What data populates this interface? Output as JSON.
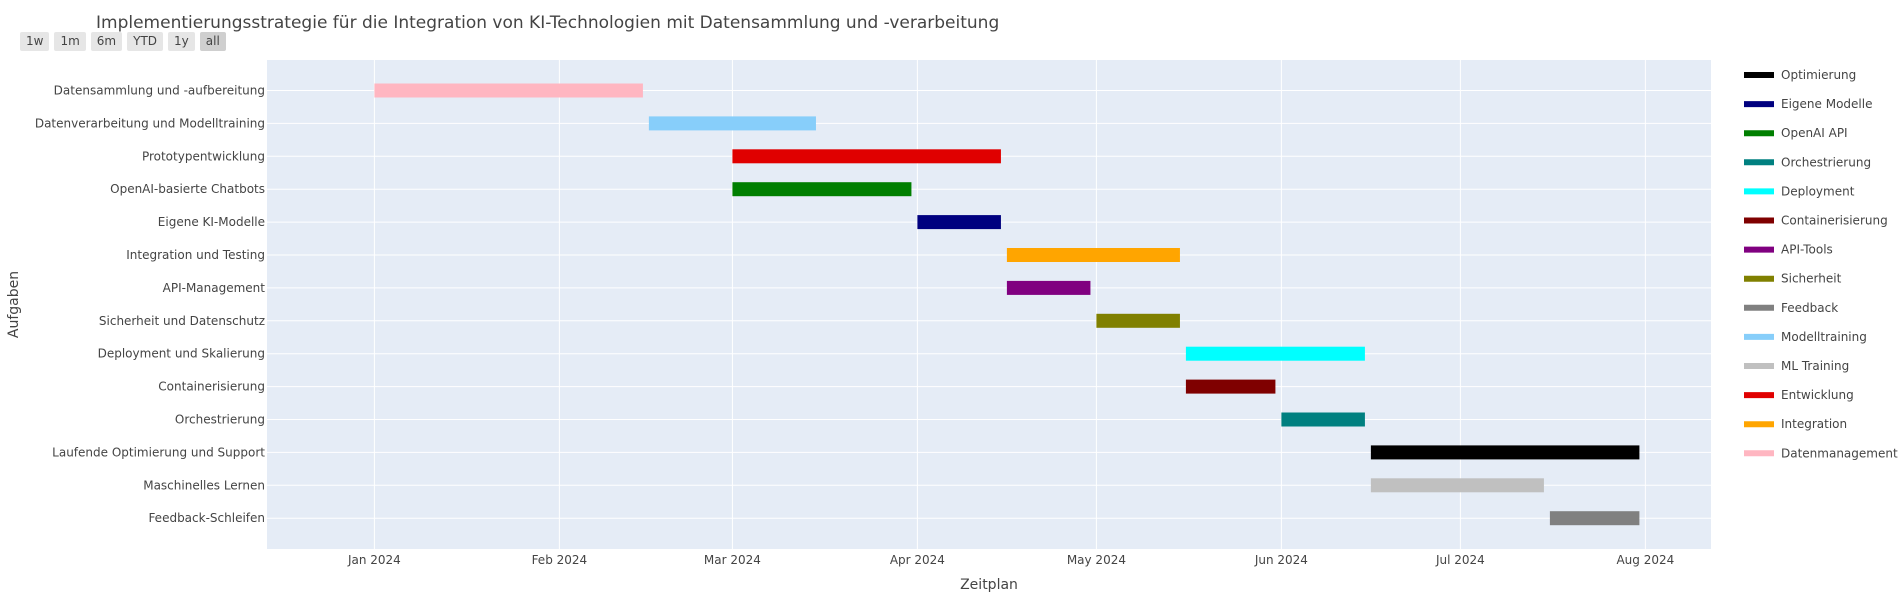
{
  "title": "Implementierungsstrategie für die Integration von KI-Technologien mit Datensammlung und -verarbeitung",
  "range_selector": {
    "buttons": [
      {
        "label": "1w",
        "active": false
      },
      {
        "label": "1m",
        "active": false
      },
      {
        "label": "6m",
        "active": false
      },
      {
        "label": "YTD",
        "active": false
      },
      {
        "label": "1y",
        "active": false
      },
      {
        "label": "all",
        "active": true
      }
    ]
  },
  "chart_data": {
    "type": "gantt",
    "title": "Implementierungsstrategie für die Integration von KI-Technologien mit Datensammlung und -verarbeitung",
    "xlabel": "Zeitplan",
    "ylabel": "Aufgaben",
    "x_range": [
      "2023-12-14",
      "2024-08-12"
    ],
    "x_ticks": [
      {
        "date": "2024-01-01",
        "label": "Jan 2024"
      },
      {
        "date": "2024-02-01",
        "label": "Feb 2024"
      },
      {
        "date": "2024-03-01",
        "label": "Mar 2024"
      },
      {
        "date": "2024-04-01",
        "label": "Apr 2024"
      },
      {
        "date": "2024-05-01",
        "label": "May 2024"
      },
      {
        "date": "2024-06-01",
        "label": "Jun 2024"
      },
      {
        "date": "2024-07-01",
        "label": "Jul 2024"
      },
      {
        "date": "2024-08-01",
        "label": "Aug 2024"
      }
    ],
    "grid": true,
    "legend_position": "right",
    "tasks": [
      {
        "task": "Datensammlung und -aufbereitung",
        "start": "2024-01-01",
        "end": "2024-02-15",
        "category": "Datenmanagement"
      },
      {
        "task": "Datenverarbeitung und Modelltraining",
        "start": "2024-02-16",
        "end": "2024-03-15",
        "category": "Modelltraining"
      },
      {
        "task": "Prototypentwicklung",
        "start": "2024-03-01",
        "end": "2024-04-15",
        "category": "Entwicklung"
      },
      {
        "task": "OpenAI-basierte Chatbots",
        "start": "2024-03-01",
        "end": "2024-03-31",
        "category": "OpenAI API"
      },
      {
        "task": "Eigene KI-Modelle",
        "start": "2024-04-01",
        "end": "2024-04-15",
        "category": "Eigene Modelle"
      },
      {
        "task": "Integration und Testing",
        "start": "2024-04-16",
        "end": "2024-05-15",
        "category": "Integration"
      },
      {
        "task": "API-Management",
        "start": "2024-04-16",
        "end": "2024-04-30",
        "category": "API-Tools"
      },
      {
        "task": "Sicherheit und Datenschutz",
        "start": "2024-05-01",
        "end": "2024-05-15",
        "category": "Sicherheit"
      },
      {
        "task": "Deployment und Skalierung",
        "start": "2024-05-16",
        "end": "2024-06-15",
        "category": "Deployment"
      },
      {
        "task": "Containerisierung",
        "start": "2024-05-16",
        "end": "2024-05-31",
        "category": "Containerisierung"
      },
      {
        "task": "Orchestrierung",
        "start": "2024-06-01",
        "end": "2024-06-15",
        "category": "Orchestrierung"
      },
      {
        "task": "Laufende Optimierung und Support",
        "start": "2024-06-16",
        "end": "2024-07-31",
        "category": "Optimierung"
      },
      {
        "task": "Maschinelles Lernen",
        "start": "2024-06-16",
        "end": "2024-07-15",
        "category": "ML Training"
      },
      {
        "task": "Feedback-Schleifen",
        "start": "2024-07-16",
        "end": "2024-07-31",
        "category": "Feedback"
      }
    ],
    "legend": [
      {
        "name": "Optimierung",
        "color": "#000000"
      },
      {
        "name": "Eigene Modelle",
        "color": "#00007f"
      },
      {
        "name": "OpenAI API",
        "color": "#007f00"
      },
      {
        "name": "Orchestrierung",
        "color": "#008080"
      },
      {
        "name": "Deployment",
        "color": "#00ffff"
      },
      {
        "name": "Containerisierung",
        "color": "#7f0000"
      },
      {
        "name": "API-Tools",
        "color": "#800080"
      },
      {
        "name": "Sicherheit",
        "color": "#808000"
      },
      {
        "name": "Feedback",
        "color": "#808080"
      },
      {
        "name": "Modelltraining",
        "color": "#87cefa"
      },
      {
        "name": "ML Training",
        "color": "#c0c0c0"
      },
      {
        "name": "Entwicklung",
        "color": "#e00000"
      },
      {
        "name": "Integration",
        "color": "#ffa500"
      },
      {
        "name": "Datenmanagement",
        "color": "#ffb6c1"
      }
    ],
    "colors": {
      "plot_background": "#e5ecf6",
      "grid": "#ffffff"
    }
  }
}
